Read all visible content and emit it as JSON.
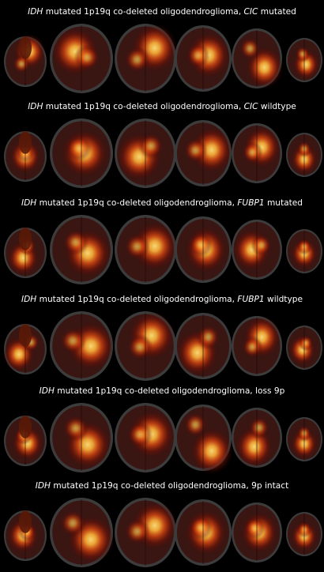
{
  "figure": {
    "background": "#000000",
    "panels": [
      {
        "caption_prefix": "IDH",
        "caption_main": " mutated 1p19q co-deleted oligodendroglioma, ",
        "caption_marker": "CIC",
        "caption_suffix": " mutated"
      },
      {
        "caption_prefix": "IDH",
        "caption_main": " mutated 1p19q co-deleted oligodendroglioma, ",
        "caption_marker": "CIC",
        "caption_suffix": " wildtype"
      },
      {
        "caption_prefix": "IDH",
        "caption_main": " mutated 1p19q co-deleted oligodendroglioma, ",
        "caption_marker": "FUBP1",
        "caption_suffix": " mutated"
      },
      {
        "caption_prefix": "IDH",
        "caption_main": " mutated 1p19q co-deleted oligodendroglioma, ",
        "caption_marker": "FUBP1",
        "caption_suffix": " wildtype"
      },
      {
        "caption_prefix": "IDH",
        "caption_main": " mutated 1p19q co-deleted oligodendroglioma, loss 9p",
        "caption_marker": "",
        "caption_suffix": ""
      },
      {
        "caption_prefix": "IDH",
        "caption_main": " mutated 1p19q co-deleted oligodendroglioma,  9p intact",
        "caption_marker": "",
        "caption_suffix": ""
      }
    ],
    "heat_colors": [
      "#3a0a05",
      "#7a1406",
      "#b8260a",
      "#e14a10",
      "#f47a1c",
      "#ffb23a",
      "#ffe27a"
    ],
    "brain_base_color": "#3c3c3c"
  }
}
